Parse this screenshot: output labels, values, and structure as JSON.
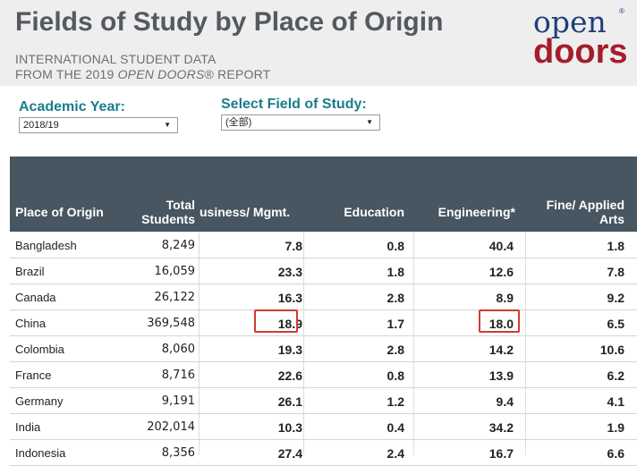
{
  "header": {
    "title": "Fields of Study by Place of Origin",
    "subtitle_line1": "INTERNATIONAL STUDENT DATA",
    "subtitle_line2_pre": "FROM THE 2019 ",
    "subtitle_line2_em": "OPEN DOORS",
    "subtitle_line2_post": "® REPORT",
    "logo_top": "open",
    "logo_bottom": "doors",
    "logo_reg": "®",
    "colors": {
      "title": "#555960",
      "logo_blue": "#1f3f7a",
      "logo_red": "#a51d2d",
      "filter_label": "#1a7d8b"
    }
  },
  "filters": {
    "academic_year_label": "Academic Year:",
    "academic_year_value": "2018/19",
    "field_label": "Select Field of Study:",
    "field_value": "(全部)",
    "caret_icon": "▼"
  },
  "table": {
    "header_color": "#475660",
    "columns": {
      "origin": "Place of Origin",
      "total_l1": "Total",
      "total_l2": "Students",
      "business": "usiness/ Mgmt.",
      "education": "Education",
      "engineering": "Engineering*",
      "fine_l1": "Fine/ Applied",
      "fine_l2": "Arts"
    },
    "rows": [
      {
        "origin": "Bangladesh",
        "total": "8,249",
        "business": "7.8",
        "education": "0.8",
        "engineering": "40.4",
        "fine": "1.8"
      },
      {
        "origin": "Brazil",
        "total": "16,059",
        "business": "23.3",
        "education": "1.8",
        "engineering": "12.6",
        "fine": "7.8"
      },
      {
        "origin": "Canada",
        "total": "26,122",
        "business": "16.3",
        "education": "2.8",
        "engineering": "8.9",
        "fine": "9.2"
      },
      {
        "origin": "China",
        "total": "369,548",
        "business": "18.9",
        "education": "1.7",
        "engineering": "18.0",
        "fine": "6.5"
      },
      {
        "origin": "Colombia",
        "total": "8,060",
        "business": "19.3",
        "education": "2.8",
        "engineering": "14.2",
        "fine": "10.6"
      },
      {
        "origin": "France",
        "total": "8,716",
        "business": "22.6",
        "education": "0.8",
        "engineering": "13.9",
        "fine": "6.2"
      },
      {
        "origin": "Germany",
        "total": "9,191",
        "business": "26.1",
        "education": "1.2",
        "engineering": "9.4",
        "fine": "4.1"
      },
      {
        "origin": "India",
        "total": "202,014",
        "business": "10.3",
        "education": "0.4",
        "engineering": "34.2",
        "fine": "1.9"
      },
      {
        "origin": "Indonesia",
        "total": "8,356",
        "business": "27.4",
        "education": "2.4",
        "engineering": "16.7",
        "fine": "6.6"
      }
    ],
    "highlight_color": "#d33a32"
  }
}
